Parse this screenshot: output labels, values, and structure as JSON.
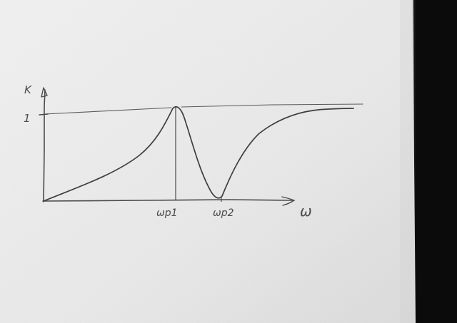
{
  "diagram": {
    "y_axis_label": "K",
    "y_tick_label": "1",
    "x_axis_label": "ω",
    "markers": [
      {
        "label": "ωp1"
      },
      {
        "label": "ωp2"
      }
    ]
  },
  "colors": {
    "paper": "#ececec",
    "ink": "#4a4a4a",
    "background": "#0b0b0b"
  }
}
